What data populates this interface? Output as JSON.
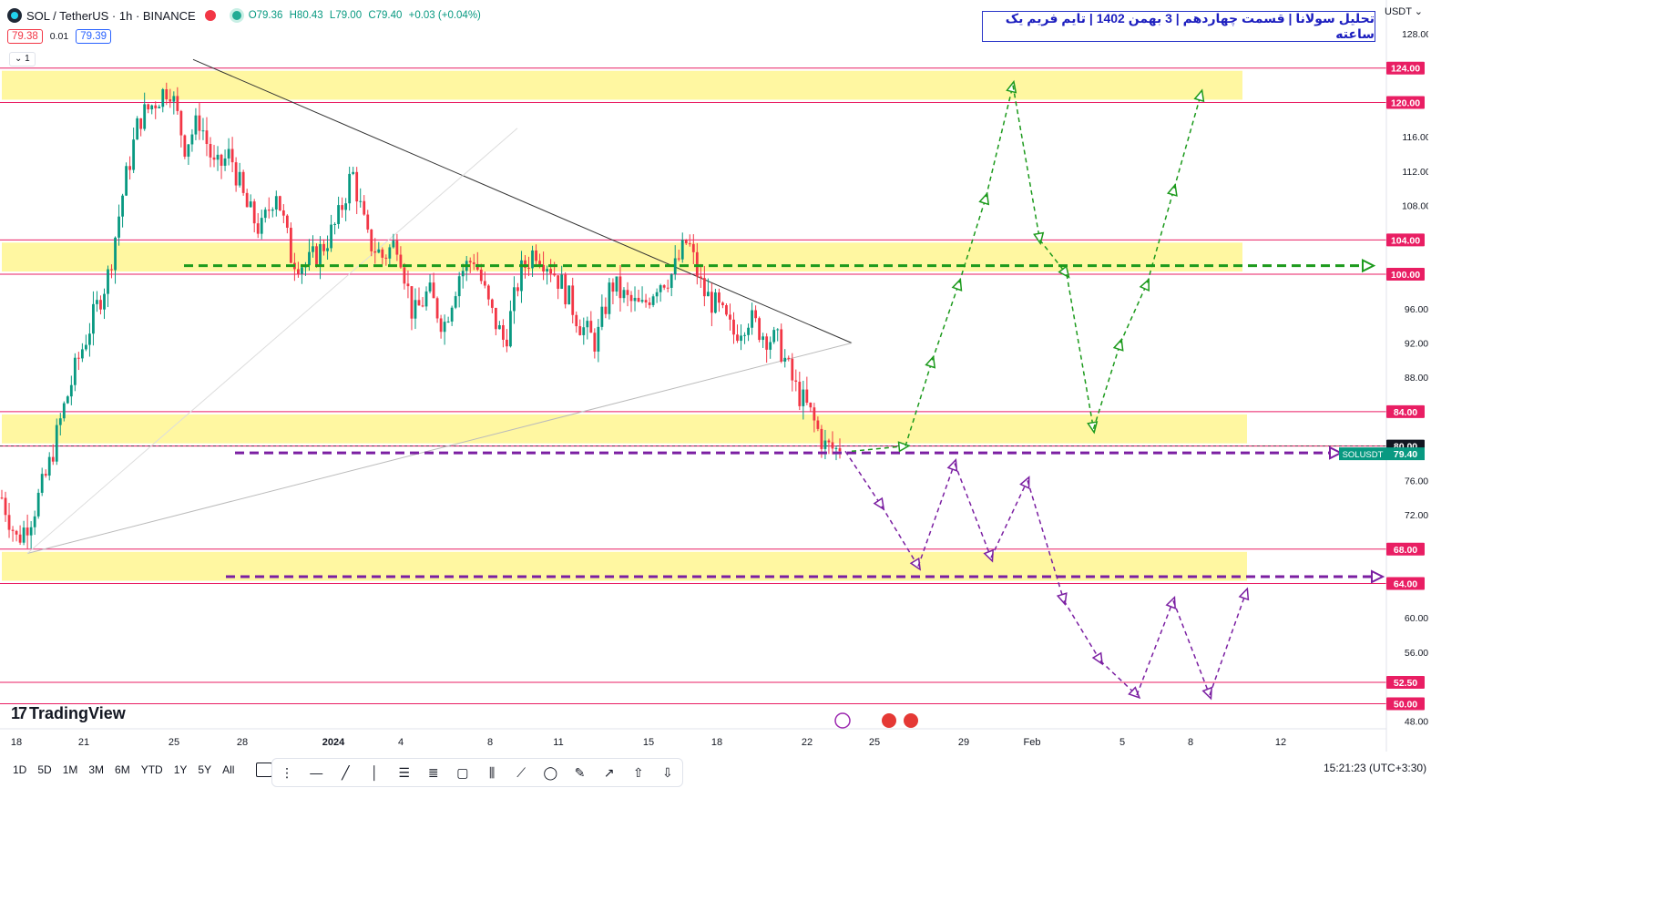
{
  "header": {
    "symbol": "SOL / TetherUS · 1h · BINANCE",
    "open": "O79.36",
    "high": "H80.43",
    "low": "L79.00",
    "close": "C79.40",
    "change": "+0.03 (+0.04%)",
    "bid": "79.38",
    "spread": "0.01",
    "ask": "79.39",
    "volume_toggle": "1"
  },
  "title": "تحلیل سولانا | قسمت چهاردهم | 3 بهمن 1402 | تایم فریم یک ساعته",
  "currency": "USDT",
  "brand": "TradingView",
  "timeframes": [
    "1D",
    "5D",
    "1M",
    "3M",
    "6M",
    "YTD",
    "1Y",
    "5Y",
    "All"
  ],
  "clock": "15:21:23 (UTC+3:30)",
  "colors": {
    "up": "#089981",
    "down": "#f23645",
    "zone": "#fff7a1",
    "level_line": "#e91e63",
    "green_path": "#1c9a1c",
    "purple_path": "#7b1fa2"
  },
  "chart_data": {
    "type": "candlestick",
    "ylim": [
      47,
      129
    ],
    "price_ticks": [
      128,
      116,
      112,
      108,
      96,
      92,
      88,
      76,
      72,
      60,
      56,
      48
    ],
    "level_labels": [
      124,
      120,
      104,
      100,
      84,
      80,
      68,
      64,
      52.5,
      50
    ],
    "level_label_text": [
      "124.00",
      "120.00",
      "104.00",
      "100.00",
      "84.00",
      "80.00",
      "68.00",
      "64.00",
      "52.50",
      "50.00"
    ],
    "price_tick_text": [
      "128.00",
      "116.00",
      "112.00",
      "108.00",
      "96.00",
      "92.00",
      "88.00",
      "76.00",
      "72.00",
      "60.00",
      "56.00",
      "48.00"
    ],
    "last_price": {
      "symbol": "SOLUSDT",
      "value": "79.40"
    },
    "x_ticks": [
      "18",
      "21",
      "25",
      "28",
      "2024",
      "4",
      "8",
      "11",
      "15",
      "18",
      "22",
      "25",
      "29",
      "Feb",
      "5",
      "8",
      "12"
    ],
    "zones": [
      {
        "low": 120,
        "high": 124
      },
      {
        "low": 100,
        "high": 104
      },
      {
        "low": 80,
        "high": 84
      },
      {
        "low": 64,
        "high": 68
      }
    ],
    "horizontal_levels": [
      124,
      120,
      104,
      100,
      84,
      80,
      68,
      64,
      52.5,
      50
    ],
    "target_lines": [
      {
        "price": 101,
        "color": "green"
      },
      {
        "price": 79.2,
        "color": "purple"
      },
      {
        "price": 64.8,
        "color": "purple"
      }
    ],
    "price_path_anchors": [
      [
        0,
        74
      ],
      [
        2,
        69
      ],
      [
        4,
        72
      ],
      [
        6,
        77
      ],
      [
        8,
        84
      ],
      [
        10,
        90
      ],
      [
        12,
        95
      ],
      [
        14,
        100
      ],
      [
        16,
        110
      ],
      [
        18,
        118
      ],
      [
        20,
        120
      ],
      [
        22,
        122
      ],
      [
        24,
        115
      ],
      [
        26,
        118
      ],
      [
        28,
        112
      ],
      [
        30,
        114
      ],
      [
        32,
        108
      ],
      [
        34,
        105
      ],
      [
        36,
        110
      ],
      [
        38,
        102
      ],
      [
        40,
        101
      ],
      [
        42,
        103
      ],
      [
        44,
        106
      ],
      [
        46,
        112
      ],
      [
        48,
        104
      ],
      [
        50,
        102
      ],
      [
        52,
        104
      ],
      [
        54,
        95
      ],
      [
        56,
        98
      ],
      [
        58,
        94
      ],
      [
        60,
        100
      ],
      [
        62,
        102
      ],
      [
        64,
        96
      ],
      [
        66,
        92
      ],
      [
        68,
        100
      ],
      [
        70,
        103
      ],
      [
        72,
        101
      ],
      [
        74,
        98
      ],
      [
        76,
        94
      ],
      [
        78,
        92
      ],
      [
        80,
        99
      ],
      [
        82,
        97
      ],
      [
        84,
        96
      ],
      [
        86,
        99
      ],
      [
        88,
        100
      ],
      [
        90,
        104
      ],
      [
        92,
        98
      ],
      [
        94,
        96
      ],
      [
        96,
        93
      ],
      [
        98,
        95
      ],
      [
        100,
        93
      ],
      [
        102,
        92
      ],
      [
        104,
        87
      ],
      [
        106,
        84
      ],
      [
        108,
        80
      ],
      [
        110,
        79.4
      ]
    ],
    "green_scenario": [
      [
        79.4,
        0
      ],
      [
        80,
        2
      ],
      [
        90,
        3
      ],
      [
        99,
        4
      ],
      [
        109,
        5
      ],
      [
        122,
        6
      ],
      [
        104,
        7
      ],
      [
        100,
        8
      ],
      [
        82,
        9
      ],
      [
        92,
        10
      ],
      [
        99,
        11
      ],
      [
        110,
        12
      ],
      [
        121,
        13
      ]
    ],
    "purple_scenario": [
      [
        79.4,
        0
      ],
      [
        73,
        1
      ],
      [
        66,
        2
      ],
      [
        78,
        3
      ],
      [
        67,
        4
      ],
      [
        76,
        5
      ],
      [
        62,
        6
      ],
      [
        55,
        7
      ],
      [
        51,
        8
      ],
      [
        62,
        9
      ],
      [
        51,
        10
      ],
      [
        63,
        11
      ]
    ]
  }
}
